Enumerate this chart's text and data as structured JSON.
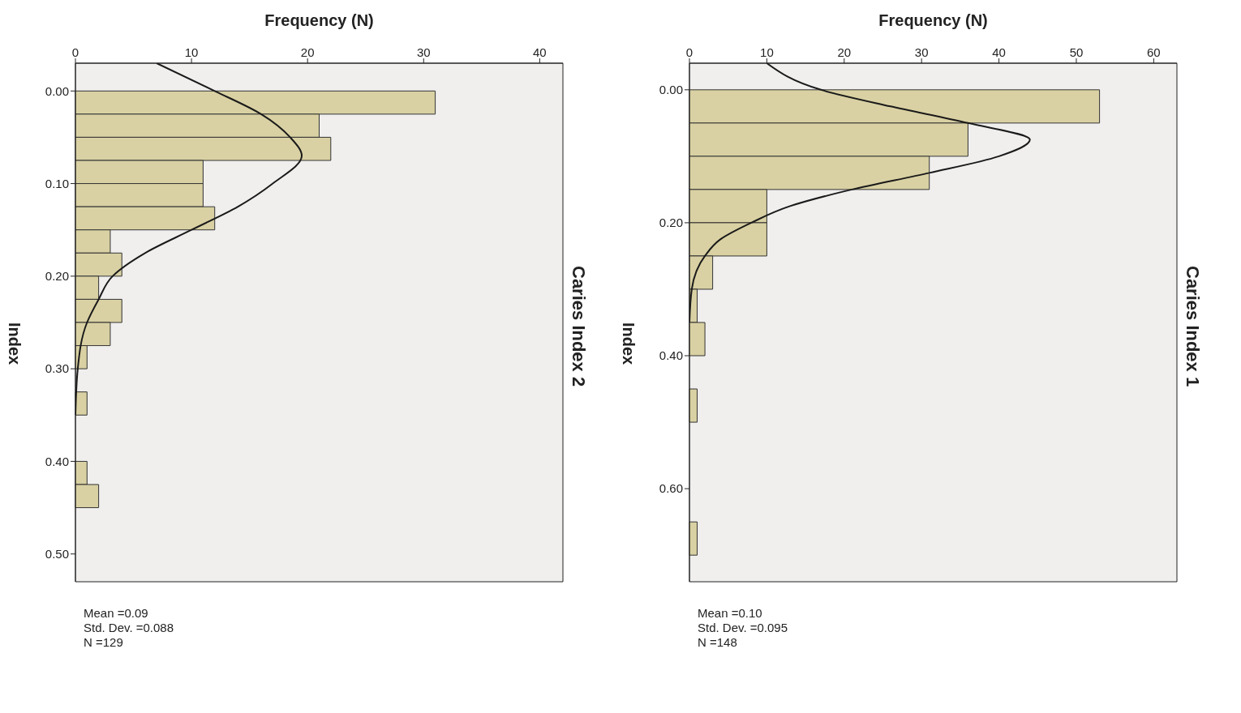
{
  "chart_data": [
    {
      "type": "histogram",
      "orientation": "horizontal",
      "title": "Caries Index 2",
      "xlabel": "Frequency (N)",
      "ylabel": "Index",
      "color": "#d9d1a3",
      "bins": [
        0,
        0.025,
        0.05,
        0.075,
        0.1,
        0.125,
        0.15,
        0.175,
        0.2,
        0.225,
        0.25,
        0.275,
        0.3,
        0.325,
        0.35,
        0.375,
        0.4,
        0.425,
        0.45
      ],
      "values": [
        31,
        21,
        22,
        11,
        11,
        12,
        3,
        4,
        2,
        4,
        3,
        1,
        0,
        1,
        0,
        0,
        1,
        2
      ],
      "xlim": [
        0,
        42
      ],
      "xticks": [
        0,
        10,
        20,
        30,
        40
      ],
      "ylim": [
        0.53,
        -0.03
      ],
      "yticks": [
        {
          "value": 0,
          "label": "0.00"
        },
        {
          "value": 0.1,
          "label": "0.10"
        },
        {
          "value": 0.2,
          "label": "0.20"
        },
        {
          "value": 0.3,
          "label": "0.30"
        },
        {
          "value": 0.4,
          "label": "0.40"
        },
        {
          "value": 0.5,
          "label": "0.50"
        }
      ],
      "series": [
        {
          "type": "line",
          "color": "#1a1a1a",
          "x": [
            -0.03,
            0,
            0.025,
            0.05,
            0.07,
            0.1,
            0.125,
            0.15,
            0.175,
            0.2,
            0.225,
            0.25,
            0.3,
            0.35
          ],
          "values": [
            7,
            12,
            16,
            18.5,
            19.5,
            17,
            14,
            10,
            6,
            3.2,
            2,
            1,
            0.2,
            0
          ]
        }
      ],
      "annotations": [
        "Mean =0.09",
        "Std. Dev. =0.088",
        "N =129"
      ]
    },
    {
      "type": "histogram",
      "orientation": "horizontal",
      "title": "Caries Index 1",
      "xlabel": "Frequency (N)",
      "ylabel": "Index",
      "color": "#d9d1a3",
      "bins": [
        0,
        0.05,
        0.1,
        0.15,
        0.2,
        0.25,
        0.3,
        0.35,
        0.4,
        0.45,
        0.5,
        0.55,
        0.6,
        0.65,
        0.7
      ],
      "values": [
        53,
        36,
        31,
        10,
        10,
        3,
        1,
        2,
        0,
        1,
        0,
        0,
        0,
        1
      ],
      "xlim": [
        0,
        63
      ],
      "xticks": [
        0,
        10,
        20,
        30,
        40,
        50,
        60
      ],
      "ylim": [
        0.74,
        -0.04
      ],
      "yticks": [
        {
          "value": 0,
          "label": "0.00"
        },
        {
          "value": 0.2,
          "label": "0.20"
        },
        {
          "value": 0.4,
          "label": "0.40"
        },
        {
          "value": 0.6,
          "label": "0.60"
        }
      ],
      "series": [
        {
          "type": "line",
          "color": "#1a1a1a",
          "x": [
            -0.04,
            0,
            0.025,
            0.05,
            0.075,
            0.1,
            0.125,
            0.15,
            0.175,
            0.2,
            0.225,
            0.25,
            0.3,
            0.35
          ],
          "values": [
            10,
            17,
            26,
            36,
            44,
            40,
            31,
            21,
            13,
            8,
            4,
            2,
            0.3,
            0
          ]
        }
      ],
      "annotations": [
        "Mean =0.10",
        "Std. Dev. =0.095",
        "N =148"
      ]
    }
  ]
}
